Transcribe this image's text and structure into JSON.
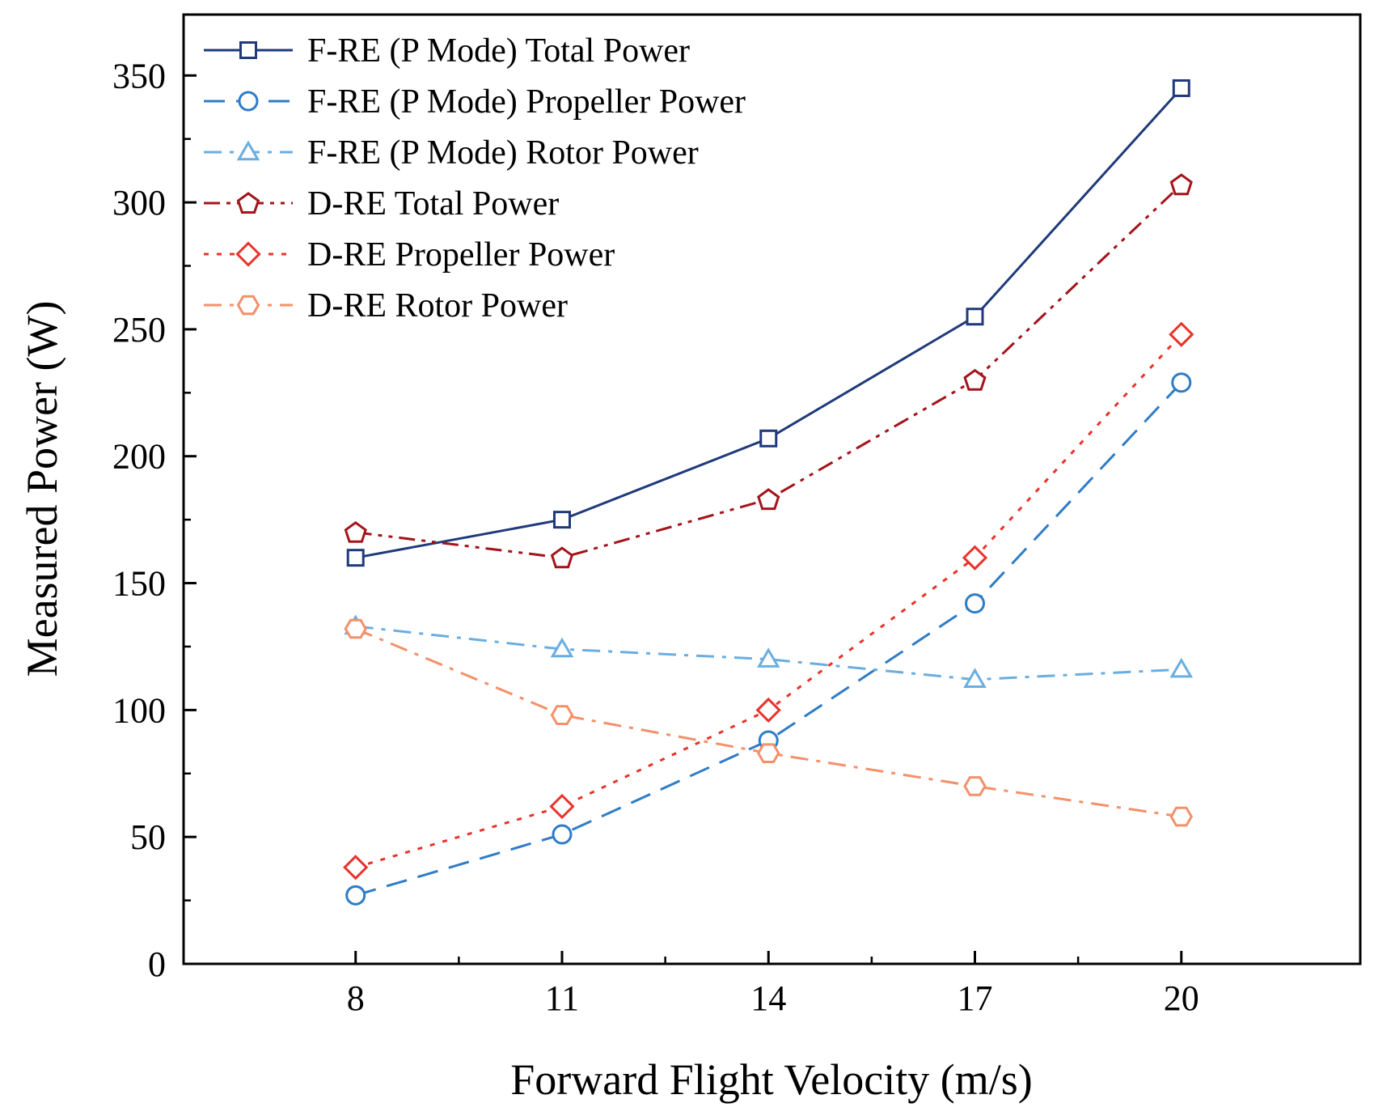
{
  "chart_data": {
    "type": "line",
    "title": "",
    "xlabel": "Forward Flight Velocity (m/s)",
    "ylabel": "Measured Power (W)",
    "xlim": [
      5.5,
      22.6
    ],
    "ylim": [
      0,
      374
    ],
    "xticks": [
      8,
      11,
      14,
      17,
      20
    ],
    "xtick_labels": [
      "8",
      "11",
      "14",
      "17",
      "20"
    ],
    "yticks": [
      0,
      50,
      100,
      150,
      200,
      250,
      300,
      350
    ],
    "ytick_labels": [
      "0",
      "50",
      "100",
      "150",
      "200",
      "250",
      "300",
      "350"
    ],
    "legend_position": "top-left",
    "grid": false,
    "x": [
      8,
      11,
      14,
      17,
      20
    ],
    "series": [
      {
        "name": "F-RE (P Mode) Total Power",
        "values": [
          160,
          175,
          207,
          255,
          345
        ],
        "color": "#1f3a7a",
        "dash": "solid",
        "marker": "square"
      },
      {
        "name": "F-RE (P Mode) Propeller Power",
        "values": [
          27,
          51,
          88,
          142,
          229
        ],
        "color": "#2f7cc6",
        "dash": "dash",
        "marker": "circle"
      },
      {
        "name": "F-RE (P Mode) Rotor Power",
        "values": [
          133,
          124,
          120,
          112,
          116
        ],
        "color": "#6aaee0",
        "dash": "dashdot",
        "marker": "triangle"
      },
      {
        "name": "D-RE Total Power",
        "values": [
          170,
          160,
          183,
          230,
          307
        ],
        "color": "#a3141b",
        "dash": "dashdotdot",
        "marker": "pentagon"
      },
      {
        "name": "D-RE Propeller Power",
        "values": [
          38,
          62,
          100,
          160,
          248
        ],
        "color": "#e8332a",
        "dash": "dot",
        "marker": "diamond"
      },
      {
        "name": "D-RE Rotor Power",
        "values": [
          132,
          98,
          83,
          70,
          58
        ],
        "color": "#f4906a",
        "dash": "dashdot",
        "marker": "hexagon"
      }
    ]
  }
}
